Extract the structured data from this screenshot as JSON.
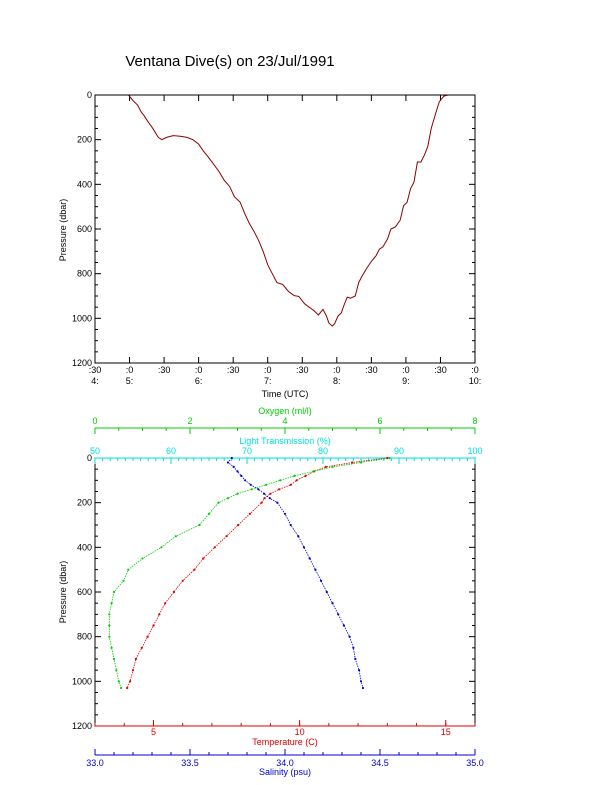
{
  "title": "Ventana Dive(s) on 23/Jul/1991",
  "colors": {
    "axis": "#000000",
    "trace": "#8b0000",
    "temperature": "#dd0000",
    "salinity": "#0000cc",
    "oxygen": "#00cc00",
    "light": "#00dddd"
  },
  "chart_data": [
    {
      "type": "line",
      "title": "Ventana Dive(s) on 23/Jul/1991",
      "xlabel": "Time (UTC)",
      "ylabel": "Pressure (dbar)",
      "xlim": [
        "04:30",
        "10:00"
      ],
      "ylim": [
        1200,
        0
      ],
      "x_ticks": [
        {
          "t": "04:30",
          "line1": ":30",
          "line2": "4:"
        },
        {
          "t": "05:00",
          "line1": ":0",
          "line2": "5:"
        },
        {
          "t": "05:30",
          "line1": ":30",
          "line2": ""
        },
        {
          "t": "06:00",
          "line1": ":0",
          "line2": "6:"
        },
        {
          "t": "06:30",
          "line1": ":30",
          "line2": ""
        },
        {
          "t": "07:00",
          "line1": ":0",
          "line2": "7:"
        },
        {
          "t": "07:30",
          "line1": ":30",
          "line2": ""
        },
        {
          "t": "08:00",
          "line1": ":0",
          "line2": "8:"
        },
        {
          "t": "08:30",
          "line1": ":30",
          "line2": ""
        },
        {
          "t": "09:00",
          "line1": ":0",
          "line2": "9:"
        },
        {
          "t": "09:30",
          "line1": ":30",
          "line2": ""
        },
        {
          "t": "10:00",
          "line1": ":0",
          "line2": "10:"
        }
      ],
      "y_ticks": [
        "0",
        "200",
        "400",
        "600",
        "800",
        "1000",
        "1200"
      ],
      "series": [
        {
          "x": [
            "04:59",
            "05:03",
            "05:07",
            "05:10",
            "05:13",
            "05:16",
            "05:19",
            "05:22",
            "05:25",
            "05:28",
            "05:32",
            "05:38",
            "05:44",
            "05:50",
            "05:55",
            "06:00",
            "06:04",
            "06:08",
            "06:13",
            "06:18",
            "06:22",
            "06:27",
            "06:31",
            "06:36",
            "06:40",
            "06:44",
            "06:48",
            "06:52",
            "06:56",
            "07:00",
            "07:04",
            "07:08",
            "07:13",
            "07:18",
            "07:23",
            "07:27",
            "07:32",
            "07:36",
            "07:40",
            "07:44",
            "07:48",
            "07:51",
            "07:53",
            "07:56",
            "07:58",
            "08:01",
            "08:04",
            "08:06",
            "08:09",
            "08:12",
            "08:16",
            "08:19",
            "08:22",
            "08:26",
            "08:30",
            "08:34",
            "08:37",
            "08:40",
            "08:44",
            "08:47",
            "08:51",
            "08:55",
            "08:58",
            "09:01",
            "09:04",
            "09:07",
            "09:10",
            "09:13",
            "09:16",
            "09:19",
            "09:22",
            "09:26",
            "09:29",
            "09:33",
            "09:37"
          ],
          "y": [
            0,
            25,
            45,
            75,
            95,
            120,
            140,
            165,
            190,
            200,
            190,
            182,
            185,
            190,
            200,
            220,
            250,
            275,
            310,
            345,
            380,
            410,
            455,
            480,
            530,
            575,
            610,
            650,
            700,
            760,
            800,
            840,
            848,
            880,
            898,
            902,
            935,
            950,
            965,
            985,
            960,
            990,
            1020,
            1035,
            1025,
            990,
            975,
            945,
            905,
            910,
            900,
            840,
            810,
            775,
            745,
            720,
            690,
            680,
            645,
            600,
            590,
            560,
            495,
            480,
            420,
            390,
            300,
            300,
            270,
            230,
            150,
            80,
            30,
            5,
            0
          ]
        }
      ]
    },
    {
      "type": "scatter",
      "ylabel": "Pressure (dbar)",
      "ylim": [
        1200,
        0
      ],
      "y_ticks": [
        "0",
        "200",
        "400",
        "600",
        "800",
        "1000",
        "1200"
      ],
      "axes": {
        "oxygen": {
          "label": "Oxygen (ml/l)",
          "range": [
            0,
            8
          ],
          "ticks": [
            "0",
            "2",
            "4",
            "6",
            "8"
          ]
        },
        "light": {
          "label": "Light Transmission (%)",
          "range": [
            50,
            100
          ],
          "ticks": [
            "50",
            "60",
            "70",
            "80",
            "90",
            "100"
          ]
        },
        "temperature": {
          "label": "Temperature (C)",
          "range": [
            3.0,
            16.0
          ],
          "ticks": [
            "5",
            "10",
            "15"
          ]
        },
        "salinity": {
          "label": "Salinity (psu)",
          "range": [
            33.0,
            35.0
          ],
          "ticks": [
            "33.0",
            "33.5",
            "34.0",
            "34.5",
            "35.0"
          ]
        }
      },
      "series": [
        {
          "axis": "temperature",
          "pressure": [
            0,
            20,
            40,
            60,
            80,
            100,
            120,
            140,
            160,
            180,
            200,
            250,
            300,
            350,
            400,
            450,
            500,
            550,
            600,
            650,
            700,
            750,
            800,
            850,
            900,
            950,
            1000,
            1030
          ],
          "values": [
            13.0,
            11.8,
            10.9,
            10.5,
            10.2,
            9.9,
            9.7,
            9.3,
            9.0,
            8.8,
            8.7,
            8.3,
            7.9,
            7.5,
            7.1,
            6.7,
            6.4,
            6.0,
            5.7,
            5.4,
            5.2,
            5.0,
            4.8,
            4.6,
            4.4,
            4.3,
            4.2,
            4.1
          ]
        },
        {
          "axis": "salinity",
          "pressure": [
            0,
            20,
            40,
            60,
            80,
            100,
            120,
            140,
            160,
            180,
            200,
            250,
            300,
            350,
            400,
            450,
            500,
            550,
            600,
            650,
            700,
            750,
            800,
            850,
            900,
            950,
            1000,
            1030
          ],
          "values": [
            33.72,
            33.7,
            33.73,
            33.75,
            33.77,
            33.79,
            33.82,
            33.86,
            33.89,
            33.92,
            33.96,
            34.0,
            34.03,
            34.07,
            34.1,
            34.13,
            34.16,
            34.19,
            34.22,
            34.25,
            34.28,
            34.31,
            34.34,
            34.36,
            34.37,
            34.39,
            34.4,
            34.41
          ]
        },
        {
          "axis": "oxygen",
          "pressure": [
            0,
            20,
            40,
            60,
            80,
            100,
            120,
            140,
            160,
            180,
            200,
            250,
            300,
            350,
            400,
            450,
            500,
            550,
            600,
            650,
            700,
            750,
            800,
            850,
            900,
            950,
            1000,
            1030
          ],
          "values": [
            6.2,
            5.6,
            5.0,
            4.6,
            4.2,
            3.9,
            3.6,
            3.3,
            3.0,
            2.8,
            2.6,
            2.4,
            2.2,
            1.7,
            1.4,
            1.0,
            0.7,
            0.6,
            0.4,
            0.35,
            0.3,
            0.3,
            0.3,
            0.35,
            0.4,
            0.45,
            0.5,
            0.55
          ]
        }
      ]
    }
  ]
}
